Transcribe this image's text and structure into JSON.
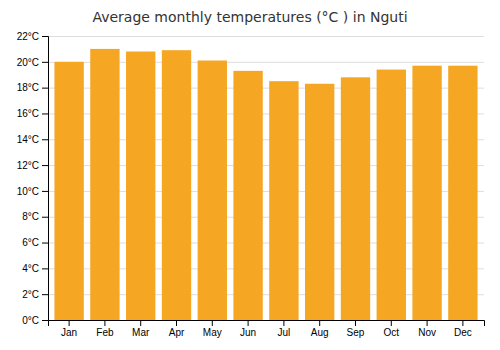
{
  "chart_data": {
    "type": "bar",
    "title": "Average monthly temperatures (°C ) in Nguti",
    "categories": [
      "Jan",
      "Feb",
      "Mar",
      "Apr",
      "May",
      "Jun",
      "Jul",
      "Aug",
      "Sep",
      "Oct",
      "Nov",
      "Dec"
    ],
    "values": [
      20.0,
      21.0,
      20.8,
      20.9,
      20.1,
      19.3,
      18.5,
      18.3,
      18.8,
      19.4,
      19.7,
      19.7
    ],
    "color": "#F5A623",
    "ylim": [
      0,
      22
    ],
    "yticks": [
      {
        "value": 0,
        "label": "0°C"
      },
      {
        "value": 2,
        "label": "2°C"
      },
      {
        "value": 4,
        "label": "4°C"
      },
      {
        "value": 6,
        "label": "6°C"
      },
      {
        "value": 8,
        "label": "8°C"
      },
      {
        "value": 10,
        "label": "10°C"
      },
      {
        "value": 12,
        "label": "12°C"
      },
      {
        "value": 14,
        "label": "14°C"
      },
      {
        "value": 16,
        "label": "16°C"
      },
      {
        "value": 18,
        "label": "18°C"
      },
      {
        "value": 20,
        "label": "20°C"
      },
      {
        "value": 22,
        "label": "22°C"
      }
    ],
    "grid": true
  }
}
